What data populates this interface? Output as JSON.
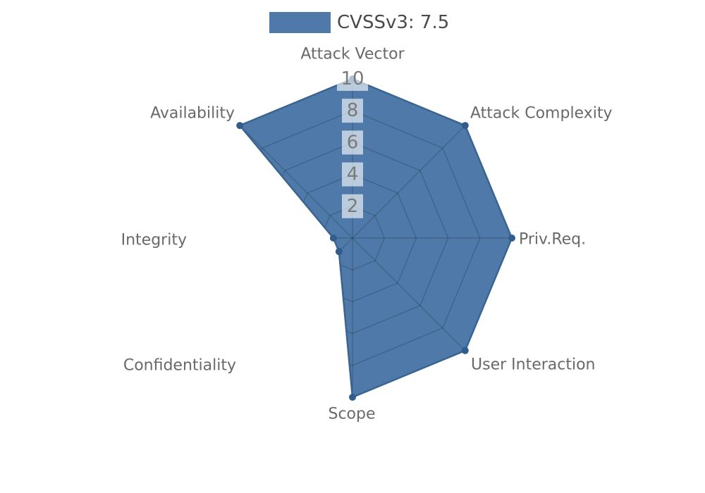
{
  "legend": {
    "items": [
      {
        "label": "CVSSv3: 7.5",
        "swatch_color": "#4e79a8"
      }
    ]
  },
  "chart_data": {
    "type": "radar",
    "title": "",
    "axes": [
      "Attack Vector",
      "Attack Complexity",
      "Priv.Req.",
      "User Interaction",
      "Scope",
      "Confidentiality",
      "Integrity",
      "Availability"
    ],
    "series": [
      {
        "name": "CVSSv3: 7.5",
        "values": [
          10,
          10,
          10,
          10,
          10,
          1.2,
          1.2,
          10
        ],
        "fill_color": "#4e79a8",
        "stroke_color": "#3a6491",
        "marker_color": "#305d8c"
      }
    ],
    "scale": {
      "min": 0,
      "max": 10,
      "tick_interval": 2,
      "tick_labels": [
        "2",
        "4",
        "6",
        "8",
        "10"
      ]
    },
    "legend_position": "top-center",
    "grid": {
      "shape": "octagon-web",
      "rings": 5,
      "spokes": 8,
      "visible_only_inside_area": true
    },
    "colors": {
      "grid_line": "rgba(0,0,0,0.20)",
      "axis_label": "#696969",
      "tick_label": "#7a7a7a",
      "tick_label_bg": "rgba(255,255,255,0.62)",
      "legend_text": "#4a4a4a",
      "background": "#ffffff"
    }
  }
}
